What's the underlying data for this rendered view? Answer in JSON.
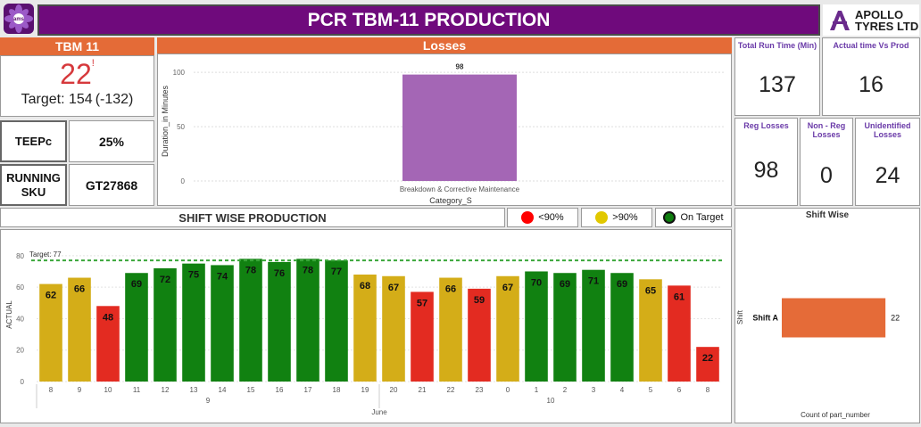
{
  "header": {
    "title": "PCR TBM-11 PRODUCTION",
    "logo_left_text": "ams",
    "brand": "APOLLO\nTYRES LTD"
  },
  "tbm": {
    "title": "TBM 11",
    "value": "22",
    "mark": "!",
    "target_text": "Target: 154",
    "delta_text": "(-132)"
  },
  "teepc": {
    "label": "TEEPc",
    "value": "25%"
  },
  "running_sku": {
    "label": "RUNNING SKU",
    "value": "GT27868"
  },
  "losses": {
    "title": "Losses",
    "chart_data": {
      "type": "bar",
      "categories": [
        "Breakdown & Corrective Maintenance"
      ],
      "values": [
        98
      ],
      "xlabel": "Category_S",
      "ylabel": "Duration_in Minutes",
      "yticks": [
        0,
        50,
        100
      ],
      "ylim": [
        0,
        110
      ],
      "color": "#a466b5"
    }
  },
  "kpis": {
    "total_run_time": {
      "label": "Total Run Time (Min)",
      "value": "137"
    },
    "actual_vs_prod": {
      "label": "Actual time Vs Prod",
      "value": "16"
    },
    "reg_losses": {
      "label": "Reg Losses",
      "value": "98"
    },
    "non_reg_losses": {
      "label": "Non - Reg Losses",
      "value": "0"
    },
    "unidentified_losses": {
      "label": "Unidentified Losses",
      "value": "24"
    }
  },
  "shift_wise_production": {
    "title": "SHIFT WISE PRODUCTION",
    "legend": [
      {
        "label": "<90%",
        "color": "#ff0000"
      },
      {
        "label": ">90%",
        "color": "#e1c800"
      },
      {
        "label": "On Target",
        "color": "#0e7d0e"
      }
    ],
    "chart_data": {
      "type": "bar",
      "ylabel": "ACTUAL",
      "xlabel": "June",
      "target_label": "Target: 77",
      "target": 77,
      "yticks": [
        0,
        20,
        40,
        60,
        80
      ],
      "ylim": [
        0,
        85
      ],
      "day_groups": [
        {
          "label": "9",
          "start": 0,
          "end": 11
        },
        {
          "label": "10",
          "start": 12,
          "end": 23
        }
      ],
      "categories": [
        "8",
        "9",
        "10",
        "11",
        "12",
        "13",
        "14",
        "15",
        "16",
        "17",
        "18",
        "19",
        "20",
        "21",
        "22",
        "23",
        "0",
        "1",
        "2",
        "3",
        "4",
        "5",
        "6",
        "8"
      ],
      "values": [
        62,
        66,
        48,
        69,
        72,
        75,
        74,
        78,
        76,
        78,
        77,
        68,
        67,
        57,
        66,
        59,
        67,
        70,
        69,
        71,
        69,
        65,
        61,
        22
      ],
      "colors": [
        "#d4ad18",
        "#d4ad18",
        "#e32b21",
        "#118111",
        "#118111",
        "#118111",
        "#118111",
        "#118111",
        "#118111",
        "#118111",
        "#118111",
        "#d4ad18",
        "#d4ad18",
        "#e32b21",
        "#d4ad18",
        "#e32b21",
        "#d4ad18",
        "#118111",
        "#118111",
        "#118111",
        "#118111",
        "#d4ad18",
        "#e32b21",
        "#e32b21"
      ]
    }
  },
  "shift_wise": {
    "title": "Shift Wise",
    "chart_data": {
      "type": "bar",
      "categories": [
        "Shift A"
      ],
      "values": [
        22
      ],
      "ylabel": "Shift",
      "xlabel": "Count of part_number",
      "xlim": [
        0,
        25
      ],
      "color": "#e56b38"
    }
  }
}
